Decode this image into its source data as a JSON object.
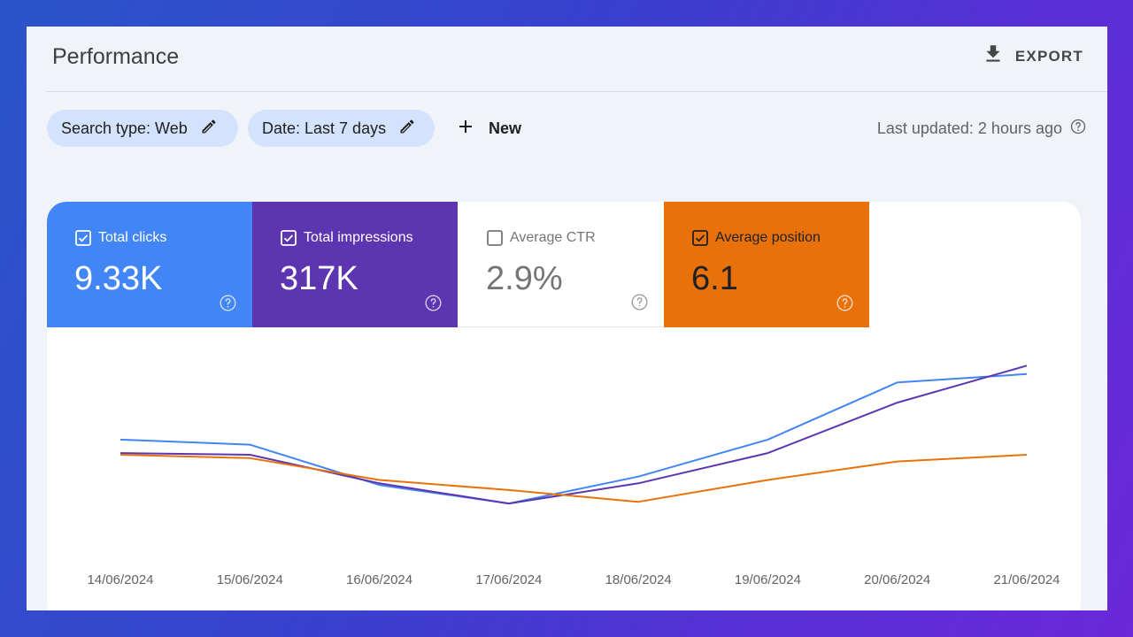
{
  "header": {
    "title": "Performance",
    "export_label": "EXPORT"
  },
  "filters": {
    "search_type": "Search type: Web",
    "date": "Date: Last 7 days",
    "new_label": "New"
  },
  "last_updated": "Last updated: 2 hours ago",
  "metrics": [
    {
      "label": "Total clicks",
      "value": "9.33K",
      "checked": true,
      "color": "#4285f4"
    },
    {
      "label": "Total impressions",
      "value": "317K",
      "checked": true,
      "color": "#5e35b1"
    },
    {
      "label": "Average CTR",
      "value": "2.9%",
      "checked": false,
      "color": "#ffffff"
    },
    {
      "label": "Average position",
      "value": "6.1",
      "checked": true,
      "color": "#e8710a"
    }
  ],
  "chart_data": {
    "type": "line",
    "x": [
      "14/06/2024",
      "15/06/2024",
      "16/06/2024",
      "17/06/2024",
      "18/06/2024",
      "19/06/2024",
      "20/06/2024",
      "21/06/2024"
    ],
    "grid": false,
    "normalized": true,
    "ylim": [
      0,
      1
    ],
    "series": [
      {
        "name": "Total clicks",
        "color": "#4285f4",
        "values": [
          0.49,
          0.46,
          0.22,
          0.11,
          0.27,
          0.49,
          0.83,
          0.88
        ]
      },
      {
        "name": "Total impressions",
        "color": "#5e35b1",
        "values": [
          0.41,
          0.4,
          0.23,
          0.11,
          0.23,
          0.41,
          0.71,
          0.93
        ]
      },
      {
        "name": "Average position",
        "color": "#e8710a",
        "values": [
          0.4,
          0.38,
          0.25,
          0.19,
          0.12,
          0.25,
          0.36,
          0.4
        ]
      }
    ]
  }
}
